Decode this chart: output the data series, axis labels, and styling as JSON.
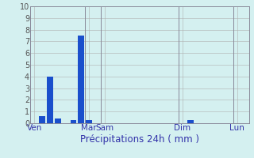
{
  "title": "Précipitations 24h ( mm )",
  "background_color": "#d4f0f0",
  "bar_color": "#1a4fcc",
  "grid_color": "#b0b0b0",
  "axis_label_color": "#3333aa",
  "tick_label_color": "#555555",
  "ylim": [
    0,
    10
  ],
  "yticks": [
    0,
    1,
    2,
    3,
    4,
    5,
    6,
    7,
    8,
    9,
    10
  ],
  "num_bars": 28,
  "bar_values": [
    0,
    0.6,
    4.0,
    0.4,
    0,
    0.3,
    7.5,
    0.3,
    0,
    0,
    0,
    0,
    0,
    0,
    0,
    0,
    0,
    0,
    0,
    0,
    0.3,
    0,
    0,
    0,
    0,
    0,
    0,
    0
  ],
  "day_labels": [
    "Ven",
    "Mar",
    "Sam",
    "Dim",
    "Lun"
  ],
  "day_tick_positions": [
    0,
    7,
    9,
    19,
    26
  ],
  "vline_positions": [
    -0.5,
    6.5,
    8.5,
    18.5,
    25.5
  ],
  "xlabel_fontsize": 8.5,
  "tick_fontsize": 7,
  "day_label_fontsize": 7.5
}
